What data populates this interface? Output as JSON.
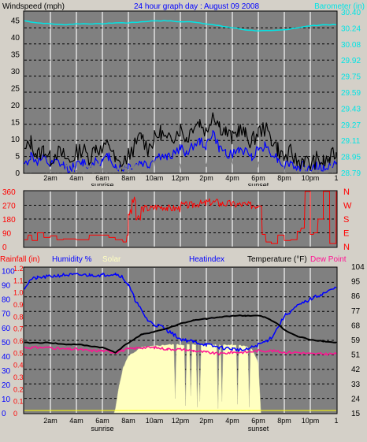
{
  "chart_data": [
    {
      "type": "line",
      "title": "24 hour graph day : August 09 2008",
      "left_label": "Windspeed (mph)",
      "right_label": "Barometer (in)",
      "y_left_ticks": [
        "0",
        "5",
        "10",
        "15",
        "20",
        "25",
        "30",
        "35",
        "40",
        "45"
      ],
      "y_right_ticks": [
        "28.79",
        "28.95",
        "29.11",
        "29.27",
        "29.43",
        "29.59",
        "29.75",
        "29.92",
        "30.08",
        "30.24",
        "30.40"
      ],
      "y_left_range": [
        0,
        47.5
      ],
      "y_right_range": [
        28.79,
        30.4
      ],
      "x_range": [
        0,
        24
      ],
      "x_ticks": [
        "2am",
        "4am",
        "6am",
        "8am",
        "10am",
        "12pm",
        "2pm",
        "4pm",
        "6pm",
        "8pm",
        "10pm",
        "1"
      ],
      "x_sublabels": [
        "sunrise",
        "sunset"
      ],
      "series": [
        {
          "key": "barometer",
          "color": "#00e5e5",
          "x": [
            0,
            1,
            2,
            3,
            4,
            5,
            6,
            7,
            8,
            9,
            10,
            11,
            12,
            13,
            14,
            15,
            16,
            17,
            18,
            19,
            20,
            21,
            22,
            23,
            24
          ],
          "y": [
            30.31,
            30.29,
            30.28,
            30.27,
            30.28,
            30.28,
            30.28,
            30.29,
            30.29,
            30.3,
            30.31,
            30.31,
            30.3,
            30.3,
            30.28,
            30.26,
            30.24,
            30.22,
            30.21,
            30.21,
            30.22,
            30.24,
            30.26,
            30.27,
            30.27
          ]
        },
        {
          "key": "wind_avg",
          "color": "#0000ff",
          "x": [
            0,
            0.5,
            1,
            1.5,
            2,
            2.5,
            3,
            3.5,
            4,
            4.5,
            5,
            5.5,
            6,
            6.5,
            7,
            7.5,
            8,
            8.5,
            9,
            9.5,
            10,
            10.5,
            11,
            11.5,
            12,
            12.5,
            13,
            13.5,
            14,
            14.5,
            15,
            15.5,
            16,
            16.5,
            17,
            17.5,
            18,
            18.5,
            19,
            19.5,
            20,
            20.5,
            21,
            21.5,
            22,
            22.5,
            23,
            23.5,
            24
          ],
          "y": [
            2,
            5,
            3,
            4,
            2,
            3,
            2,
            1,
            2,
            3,
            2,
            4,
            3,
            5,
            2,
            1,
            2,
            2,
            3,
            2,
            4,
            5,
            4,
            6,
            7,
            6,
            8,
            9,
            8,
            12,
            7,
            6,
            5,
            7,
            6,
            5,
            7,
            8,
            6,
            4,
            2,
            3,
            1,
            2,
            1,
            2,
            1,
            2,
            3
          ]
        },
        {
          "key": "wind_gust",
          "color": "#000000",
          "x": [
            0,
            0.5,
            1,
            1.5,
            2,
            2.5,
            3,
            3.5,
            4,
            4.5,
            5,
            5.5,
            6,
            6.5,
            7,
            7.5,
            8,
            8.5,
            9,
            9.5,
            10,
            10.5,
            11,
            11.5,
            12,
            12.5,
            13,
            13.5,
            14,
            14.5,
            15,
            15.5,
            16,
            16.5,
            17,
            17.5,
            18,
            18.5,
            19,
            19.5,
            20,
            20.5,
            21,
            21.5,
            22,
            22.5,
            23,
            23.5,
            24
          ],
          "y": [
            6,
            9,
            5,
            7,
            4,
            6,
            5,
            3,
            6,
            7,
            4,
            8,
            6,
            9,
            3,
            2,
            5,
            8,
            11,
            7,
            10,
            12,
            9,
            11,
            13,
            10,
            14,
            15,
            12,
            18,
            14,
            12,
            10,
            13,
            11,
            9,
            12,
            13,
            10,
            7,
            4,
            6,
            3,
            4,
            2,
            4,
            3,
            4,
            6
          ]
        },
        {
          "key": "wind_low",
          "color": "#808080",
          "x": [
            0,
            1,
            2,
            3,
            4,
            5,
            6,
            7,
            8,
            9,
            10,
            11,
            12,
            13,
            14,
            15,
            16,
            17,
            18,
            19,
            20,
            21,
            22,
            23,
            24
          ],
          "y": [
            0,
            1,
            0,
            1,
            0,
            1,
            1,
            0,
            1,
            1,
            2,
            2,
            2,
            3,
            3,
            4,
            3,
            3,
            2,
            2,
            1,
            0,
            0,
            0,
            1
          ]
        }
      ]
    },
    {
      "type": "line",
      "y_left_ticks": [
        "360",
        "270",
        "180",
        "90",
        "0"
      ],
      "y_right_ticks": [
        "N",
        "W",
        "S",
        "E",
        "N"
      ],
      "y_range": [
        0,
        360
      ],
      "series": [
        {
          "key": "wind_dir",
          "color": "#ff0000",
          "x": [
            0,
            0.3,
            0.6,
            1,
            1.5,
            2,
            2.5,
            3,
            4,
            5,
            6,
            6.5,
            7,
            7.3,
            7.6,
            7.9,
            8,
            8.3,
            8.6,
            9,
            10,
            11,
            12,
            13,
            14,
            15,
            16,
            17,
            18,
            18.3,
            18.6,
            19,
            19.5,
            20,
            20.5,
            21,
            21.3,
            21.6,
            22,
            22.3,
            22.6,
            23,
            23.5,
            24
          ],
          "y": [
            45,
            75,
            40,
            90,
            60,
            70,
            45,
            50,
            45,
            75,
            75,
            60,
            45,
            45,
            30,
            75,
            220,
            300,
            180,
            250,
            260,
            250,
            270,
            280,
            290,
            280,
            275,
            270,
            265,
            80,
            30,
            20,
            75,
            40,
            45,
            100,
            120,
            360,
            80,
            90,
            180,
            360,
            20,
            360
          ]
        }
      ]
    },
    {
      "type": "line",
      "legend": [
        "Rainfall (in)",
        "Humidity %",
        "Solar",
        "Heatindex",
        "Temperature (°F)",
        "Dew Point"
      ],
      "y_left_ticks": [
        "0",
        "10",
        "20",
        "30",
        "40",
        "50",
        "60",
        "70",
        "80",
        "90",
        "100"
      ],
      "y_left2_ticks": [
        "0",
        "0.1",
        "0.2",
        "0.3",
        "0.4",
        "0.5",
        "0.6",
        "0.7",
        "0.8",
        "0.9",
        "1.0",
        "1.1",
        "1.2"
      ],
      "y_right_ticks": [
        "15",
        "24",
        "33",
        "42",
        "51",
        "59",
        "68",
        "77",
        "86",
        "95",
        "104"
      ],
      "y_left_range": [
        0,
        102
      ],
      "y_right_range": [
        15,
        106
      ],
      "series": [
        {
          "key": "humidity",
          "color": "#0000ff",
          "x": [
            0,
            0.5,
            1,
            2,
            3,
            4,
            5,
            6,
            7,
            7.5,
            8,
            8.5,
            9,
            9.5,
            10,
            10.5,
            11,
            11.5,
            12,
            13,
            14,
            15,
            16,
            17,
            18,
            18.5,
            19,
            19.5,
            20,
            21,
            22,
            23,
            24
          ],
          "y": [
            88,
            94,
            95,
            96,
            97,
            97,
            97,
            97,
            98,
            96,
            90,
            80,
            72,
            65,
            62,
            61,
            58,
            55,
            52,
            50,
            48,
            46,
            45,
            44,
            48,
            50,
            53,
            60,
            68,
            75,
            80,
            84,
            88
          ]
        },
        {
          "key": "temperature",
          "color": "#000000",
          "x": [
            0,
            1,
            2,
            3,
            4,
            5,
            6,
            7,
            8,
            9,
            10,
            11,
            12,
            13,
            14,
            15,
            16,
            17,
            18,
            18.5,
            19,
            19.5,
            20,
            21,
            22,
            23,
            24
          ],
          "y": [
            59,
            59,
            59,
            58,
            58,
            57,
            56,
            53,
            59,
            64,
            66,
            68,
            71,
            73,
            74,
            75,
            76,
            76,
            76,
            75,
            73,
            71,
            67,
            63,
            61,
            60,
            59
          ]
        },
        {
          "key": "heatindex",
          "color": "#0000ff",
          "x": [
            9,
            10,
            11,
            12,
            13,
            14,
            15,
            16,
            17,
            18
          ],
          "y": [
            64,
            66,
            68,
            71,
            73,
            74,
            75,
            76,
            76,
            76
          ]
        },
        {
          "key": "dewpoint",
          "color": "#ff1493",
          "x": [
            0,
            1,
            2,
            3,
            4,
            5,
            6,
            7,
            8,
            9,
            10,
            11,
            12,
            13,
            14,
            15,
            16,
            17,
            18,
            18.5,
            19,
            20,
            21,
            22,
            23,
            24
          ],
          "y": [
            56,
            56,
            56,
            55,
            55,
            54,
            54,
            53,
            55,
            56,
            56,
            55,
            55,
            54,
            53,
            52,
            53,
            53,
            54,
            54,
            54,
            53,
            53,
            52,
            52,
            52
          ],
          "jitter": true
        },
        {
          "key": "solar",
          "color": "#ffffc0",
          "x": [
            6.9,
            7,
            7.3,
            7.6,
            8,
            9,
            10,
            11,
            12,
            13,
            14,
            15,
            16,
            17,
            17.5,
            18,
            18.2
          ],
          "y": [
            0,
            3,
            20,
            32,
            40,
            46,
            47,
            48,
            48,
            48,
            48,
            48,
            48,
            47,
            45,
            35,
            0
          ],
          "dips": [
            [
              7.05,
              3
            ],
            [
              11.55,
              10
            ],
            [
              12.4,
              5
            ],
            [
              12.8,
              12
            ],
            [
              13.25,
              4
            ],
            [
              13.5,
              8
            ],
            [
              14.9,
              3
            ],
            [
              15.2,
              8
            ],
            [
              16.4,
              6
            ],
            [
              17.3,
              4
            ]
          ]
        },
        {
          "key": "rainfall",
          "color": "#ffff00",
          "value": 0
        }
      ]
    }
  ]
}
